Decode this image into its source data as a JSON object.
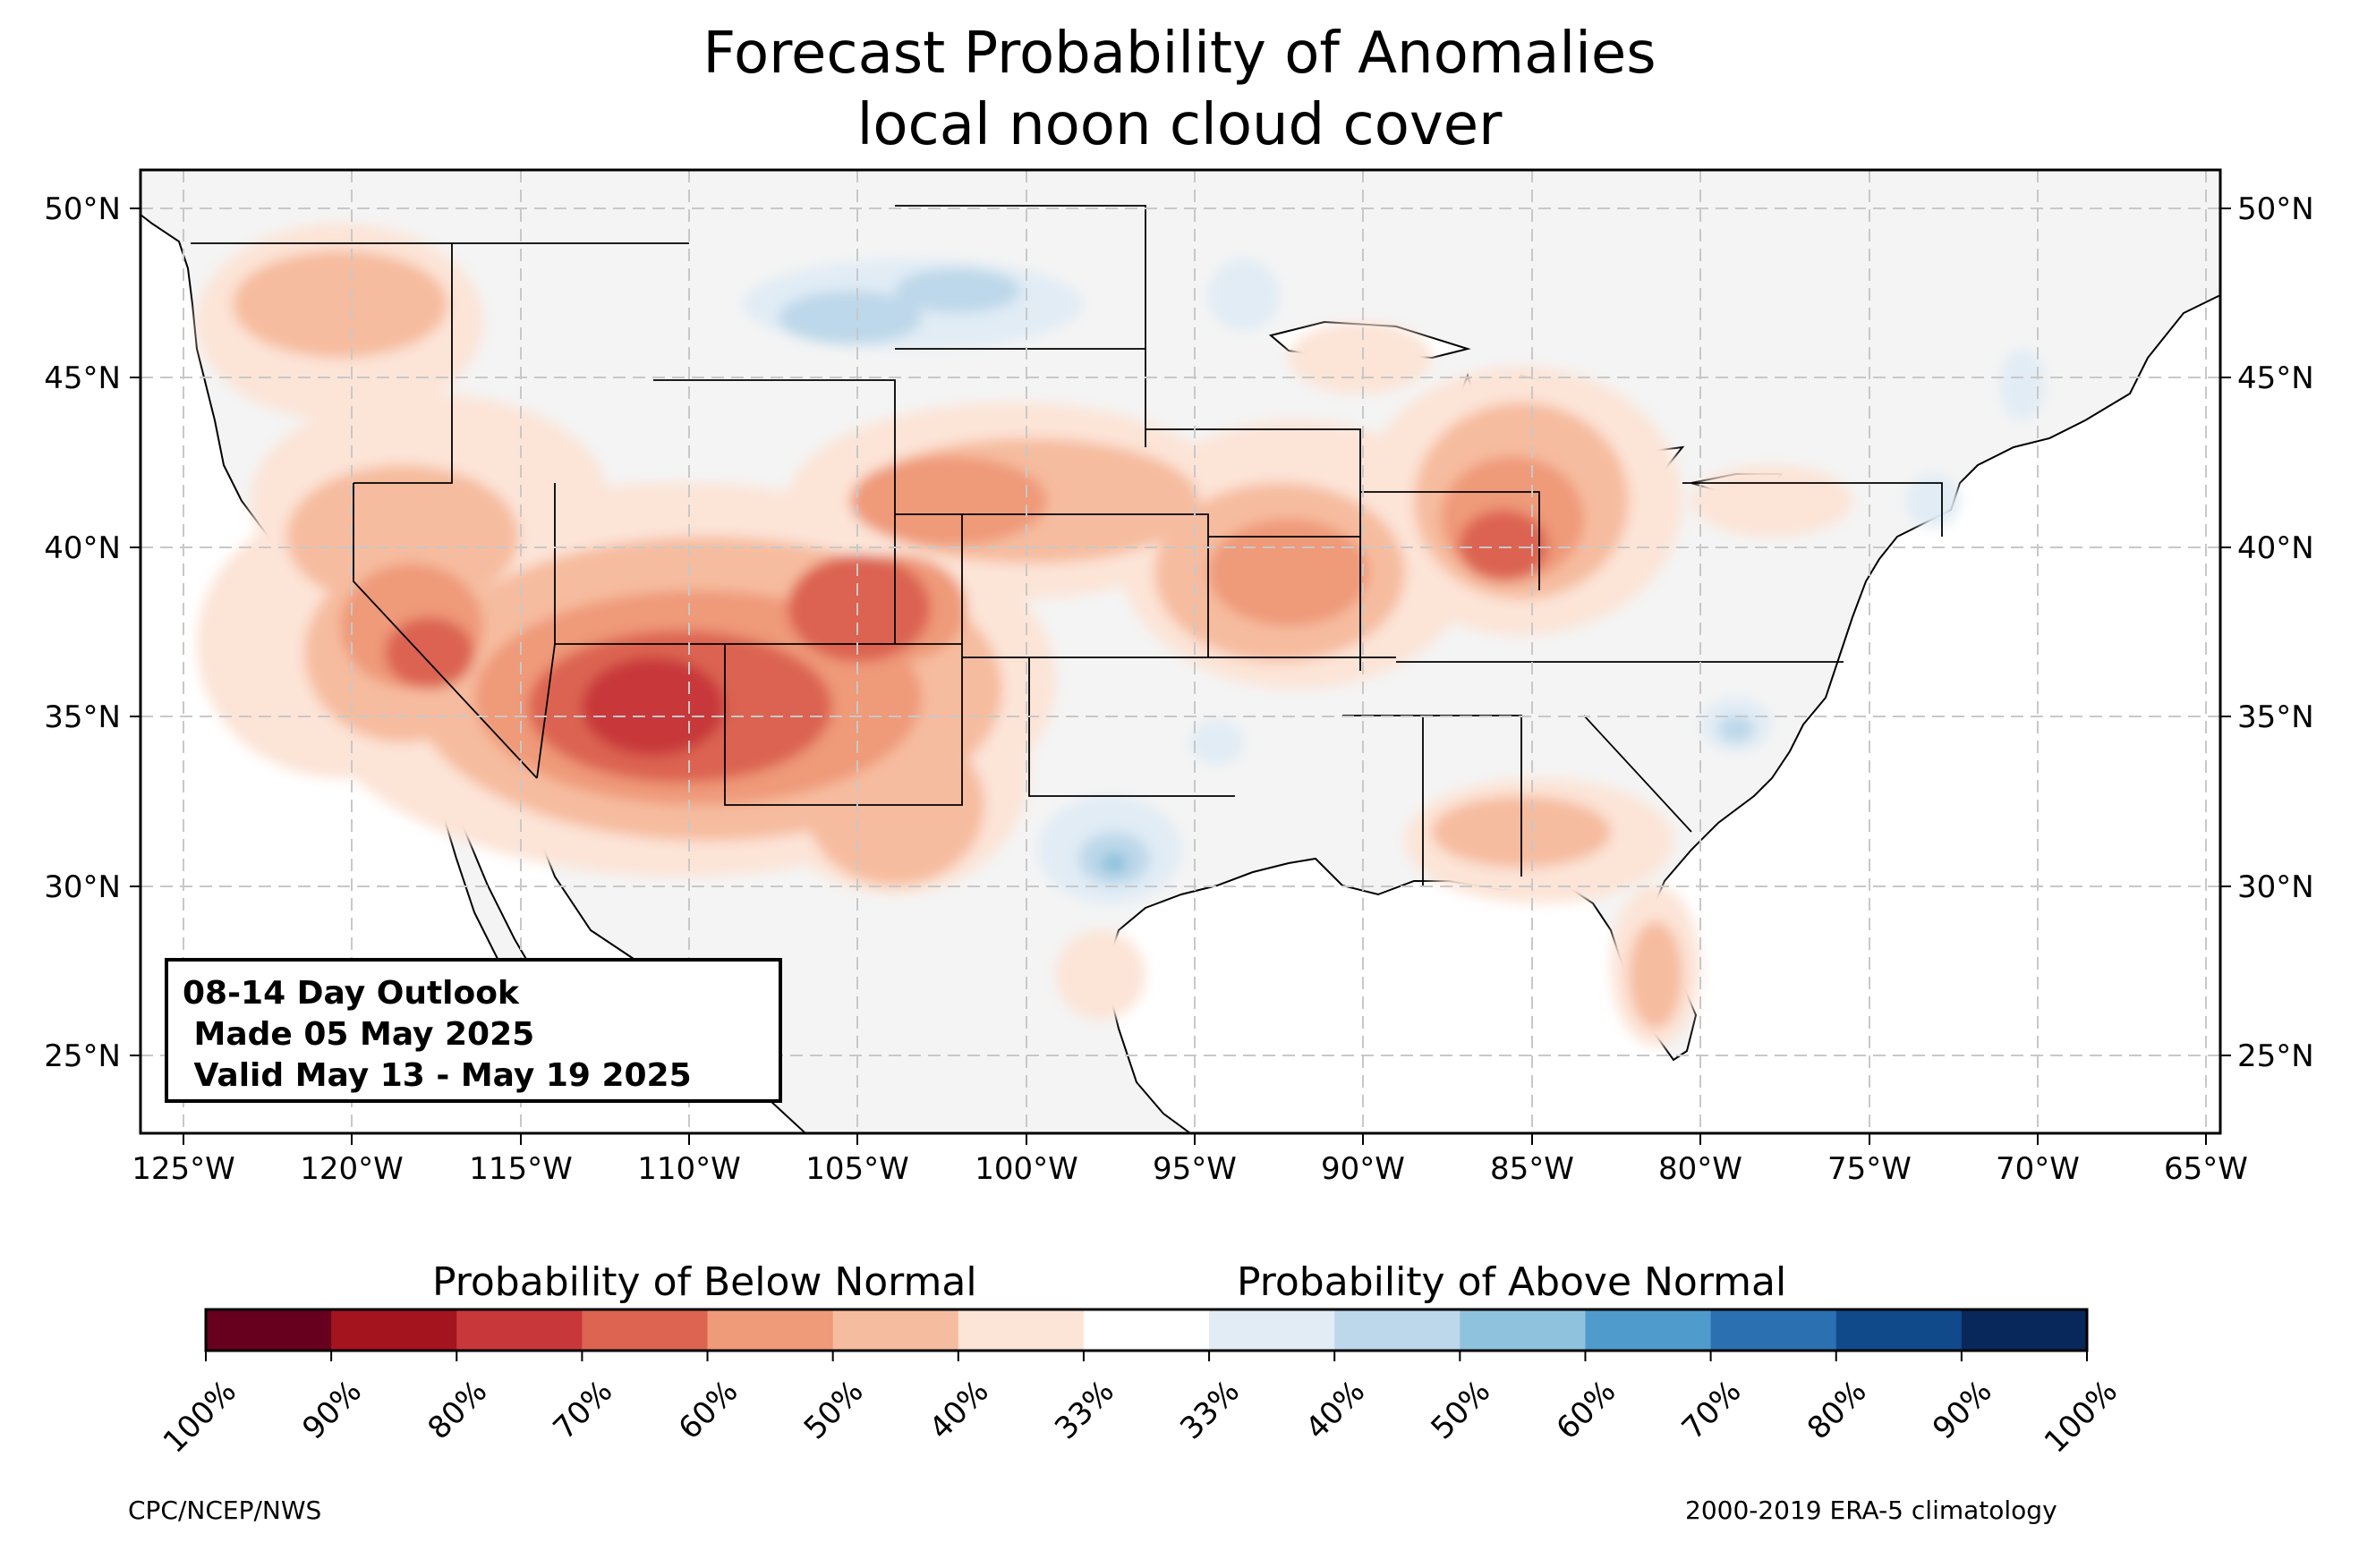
{
  "title": {
    "line1": "Forecast Probability of Anomalies",
    "line2": "local noon cloud cover"
  },
  "map": {
    "lon_ticks": [
      "125°W",
      "120°W",
      "115°W",
      "110°W",
      "105°W",
      "100°W",
      "95°W",
      "90°W",
      "85°W",
      "80°W",
      "75°W",
      "70°W",
      "65°W"
    ],
    "lat_ticks": [
      "50°N",
      "45°N",
      "40°N",
      "35°N",
      "30°N",
      "25°N"
    ],
    "land_color": "#f4f4f4",
    "ocean_color": "#ffffff",
    "below_colors": [
      "#67001f",
      "#a3141e",
      "#c8373a",
      "#dc6451",
      "#ef9a79",
      "#f6bc9f",
      "#fce4d7"
    ],
    "above_colors": [
      "#e1ecf5",
      "#bdd8ea",
      "#8fc2dd",
      "#4f9bcb",
      "#2b70b1",
      "#114a8b",
      "#08275a"
    ]
  },
  "outlook_box": {
    "line1": "08-14 Day Outlook",
    "line2": " Made 05 May 2025",
    "line3": " Valid May 13 - May 19 2025"
  },
  "colorbar": {
    "below_label": "Probability of Below Normal",
    "above_label": "Probability of Above Normal",
    "ticks": [
      "100%",
      "90%",
      "80%",
      "70%",
      "60%",
      "50%",
      "40%",
      "33%",
      "33%",
      "40%",
      "50%",
      "60%",
      "70%",
      "80%",
      "90%",
      "100%"
    ],
    "colors": [
      "#67001f",
      "#a3141e",
      "#c8373a",
      "#dc6451",
      "#ef9a79",
      "#f6bc9f",
      "#fce4d7",
      "#ffffff",
      "#e1ecf5",
      "#bdd8ea",
      "#8fc2dd",
      "#4f9bcb",
      "#2b70b1",
      "#114a8b",
      "#08275a"
    ]
  },
  "footer": {
    "left": "CPC/NCEP/NWS",
    "right": "2000-2019 ERA-5 climatology"
  }
}
